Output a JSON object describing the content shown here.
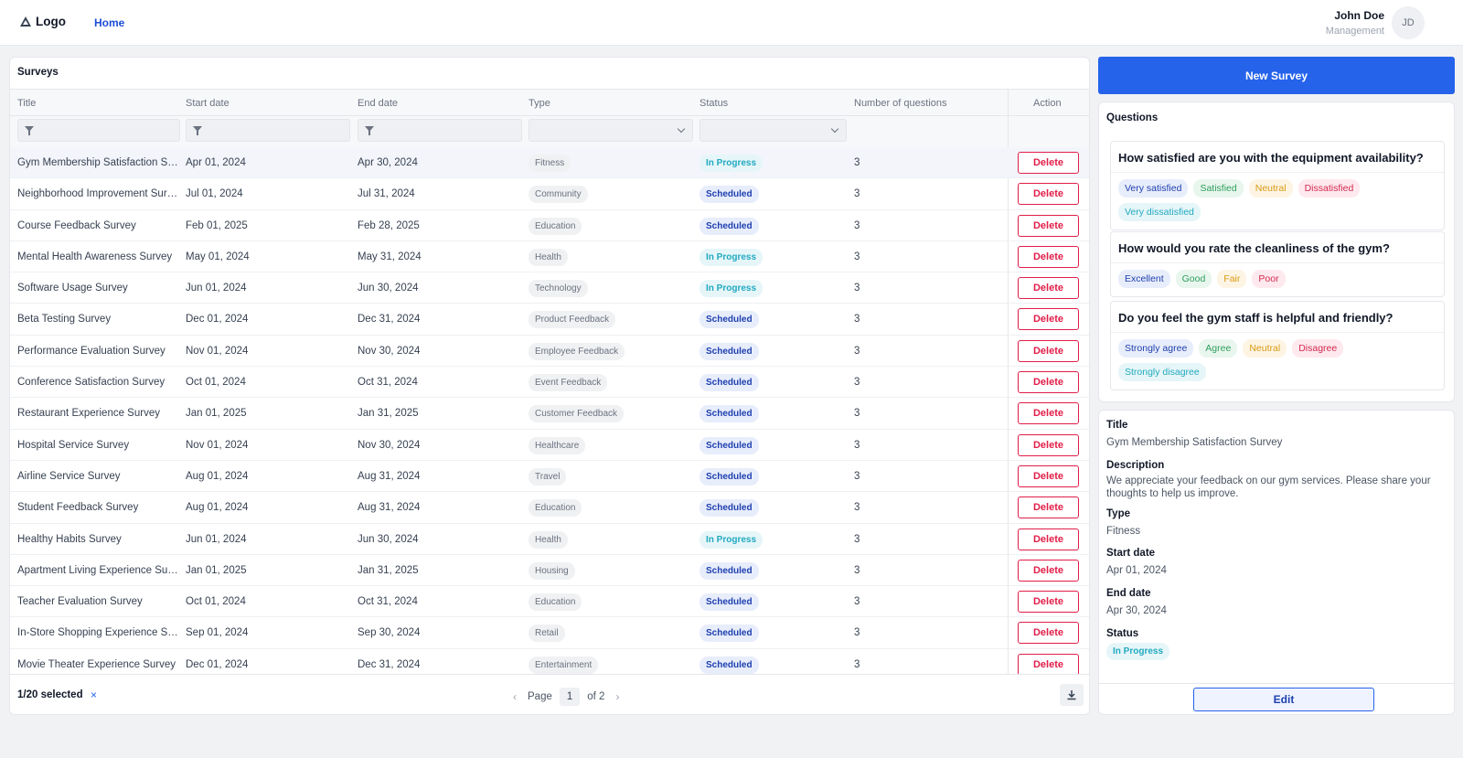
{
  "header": {
    "logo_text": "Logo",
    "nav_home": "Home",
    "user_name": "John Doe",
    "user_role": "Management",
    "avatar_initials": "JD"
  },
  "surveys": {
    "panel_title": "Surveys",
    "columns": [
      "Title",
      "Start date",
      "End date",
      "Type",
      "Status",
      "Number of questions",
      "Action"
    ],
    "delete_label": "Delete",
    "rows": [
      {
        "title": "Gym Membership Satisfaction Survey",
        "start": "Apr 01, 2024",
        "end": "Apr 30, 2024",
        "type": "Fitness",
        "status": "In Progress",
        "questions": "3"
      },
      {
        "title": "Neighborhood Improvement Survey",
        "start": "Jul 01, 2024",
        "end": "Jul 31, 2024",
        "type": "Community",
        "status": "Scheduled",
        "questions": "3"
      },
      {
        "title": "Course Feedback Survey",
        "start": "Feb 01, 2025",
        "end": "Feb 28, 2025",
        "type": "Education",
        "status": "Scheduled",
        "questions": "3"
      },
      {
        "title": "Mental Health Awareness Survey",
        "start": "May 01, 2024",
        "end": "May 31, 2024",
        "type": "Health",
        "status": "In Progress",
        "questions": "3"
      },
      {
        "title": "Software Usage Survey",
        "start": "Jun 01, 2024",
        "end": "Jun 30, 2024",
        "type": "Technology",
        "status": "In Progress",
        "questions": "3"
      },
      {
        "title": "Beta Testing Survey",
        "start": "Dec 01, 2024",
        "end": "Dec 31, 2024",
        "type": "Product Feedback",
        "status": "Scheduled",
        "questions": "3"
      },
      {
        "title": "Performance Evaluation Survey",
        "start": "Nov 01, 2024",
        "end": "Nov 30, 2024",
        "type": "Employee Feedback",
        "status": "Scheduled",
        "questions": "3"
      },
      {
        "title": "Conference Satisfaction Survey",
        "start": "Oct 01, 2024",
        "end": "Oct 31, 2024",
        "type": "Event Feedback",
        "status": "Scheduled",
        "questions": "3"
      },
      {
        "title": "Restaurant Experience Survey",
        "start": "Jan 01, 2025",
        "end": "Jan 31, 2025",
        "type": "Customer Feedback",
        "status": "Scheduled",
        "questions": "3"
      },
      {
        "title": "Hospital Service Survey",
        "start": "Nov 01, 2024",
        "end": "Nov 30, 2024",
        "type": "Healthcare",
        "status": "Scheduled",
        "questions": "3"
      },
      {
        "title": "Airline Service Survey",
        "start": "Aug 01, 2024",
        "end": "Aug 31, 2024",
        "type": "Travel",
        "status": "Scheduled",
        "questions": "3"
      },
      {
        "title": "Student Feedback Survey",
        "start": "Aug 01, 2024",
        "end": "Aug 31, 2024",
        "type": "Education",
        "status": "Scheduled",
        "questions": "3"
      },
      {
        "title": "Healthy Habits Survey",
        "start": "Jun 01, 2024",
        "end": "Jun 30, 2024",
        "type": "Health",
        "status": "In Progress",
        "questions": "3"
      },
      {
        "title": "Apartment Living Experience Survey",
        "start": "Jan 01, 2025",
        "end": "Jan 31, 2025",
        "type": "Housing",
        "status": "Scheduled",
        "questions": "3"
      },
      {
        "title": "Teacher Evaluation Survey",
        "start": "Oct 01, 2024",
        "end": "Oct 31, 2024",
        "type": "Education",
        "status": "Scheduled",
        "questions": "3"
      },
      {
        "title": "In-Store Shopping Experience Survey",
        "start": "Sep 01, 2024",
        "end": "Sep 30, 2024",
        "type": "Retail",
        "status": "Scheduled",
        "questions": "3"
      },
      {
        "title": "Movie Theater Experience Survey",
        "start": "Dec 01, 2024",
        "end": "Dec 31, 2024",
        "type": "Entertainment",
        "status": "Scheduled",
        "questions": "3"
      }
    ],
    "selected_count": "1/20 selected",
    "clear_selection": "×",
    "page_label": "Page",
    "page_current": "1",
    "page_total": "of 2",
    "prev": "‹",
    "next": "›"
  },
  "new_survey_label": "New Survey",
  "questions_panel": {
    "title": "Questions",
    "items": [
      {
        "text": "How satisfied are you with the equipment availability?",
        "options": [
          "Very satisfied",
          "Satisfied",
          "Neutral",
          "Dissatisfied",
          "Very dissatisfied"
        ]
      },
      {
        "text": "How would you rate the cleanliness of the gym?",
        "options": [
          "Excellent",
          "Good",
          "Fair",
          "Poor"
        ]
      },
      {
        "text": "Do you feel the gym staff is helpful and friendly?",
        "options": [
          "Strongly agree",
          "Agree",
          "Neutral",
          "Disagree",
          "Strongly disagree"
        ]
      }
    ]
  },
  "details": {
    "title_label": "Title",
    "title_value": "Gym Membership Satisfaction Survey",
    "description_label": "Description",
    "description_value": "We appreciate your feedback on our gym services. Please share your thoughts to help us improve.",
    "type_label": "Type",
    "type_value": "Fitness",
    "start_label": "Start date",
    "start_value": "Apr 01, 2024",
    "end_label": "End date",
    "end_value": "Apr 30, 2024",
    "status_label": "Status",
    "status_value": "In Progress",
    "edit_label": "Edit"
  },
  "colors": {
    "primary": "#2563eb",
    "danger": "#e11d48",
    "in_progress": "#22a9c1",
    "scheduled": "#1e40af"
  }
}
